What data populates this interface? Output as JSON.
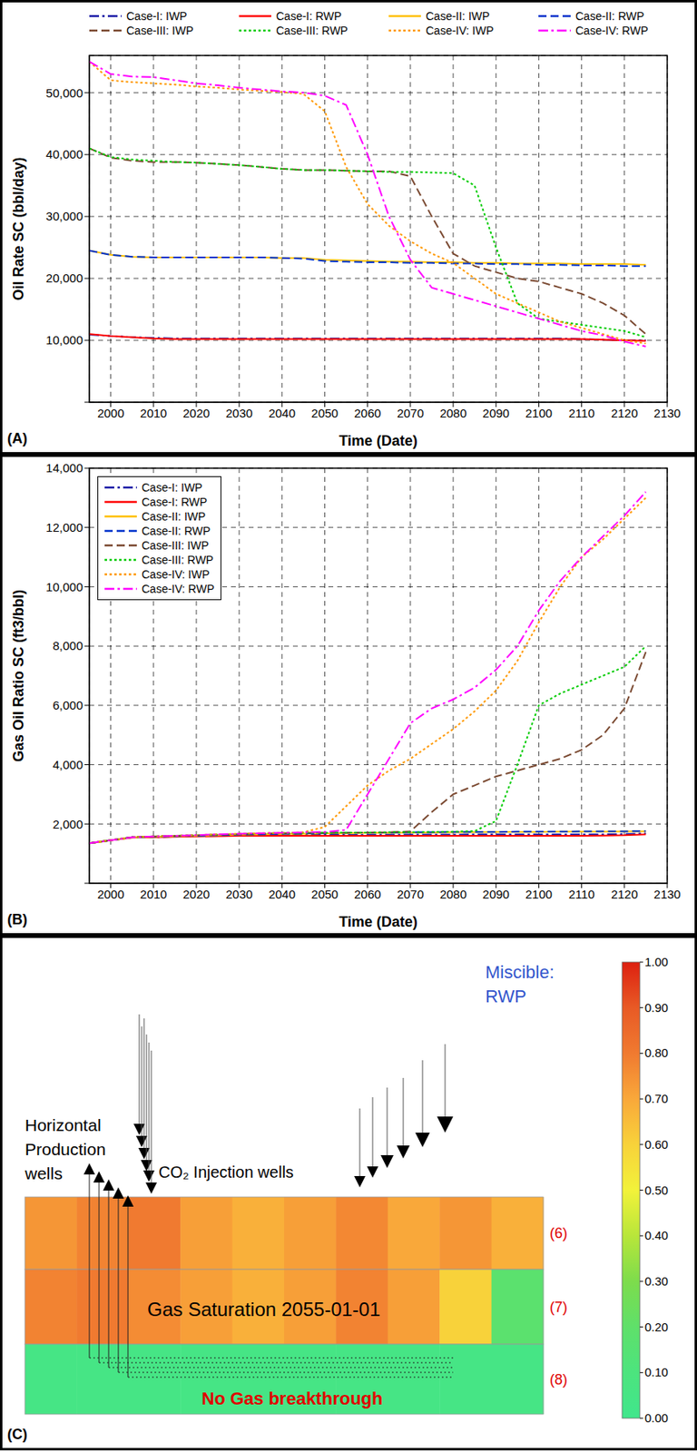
{
  "chart_data": [
    {
      "type": "line",
      "panel": "(A)",
      "y_label": "Oil Rate SC (bbl/day)",
      "x_label": "Time (Date)",
      "x": [
        1995,
        2000,
        2005,
        2010,
        2015,
        2020,
        2025,
        2030,
        2035,
        2040,
        2045,
        2050,
        2055,
        2060,
        2065,
        2070,
        2075,
        2080,
        2085,
        2090,
        2095,
        2100,
        2105,
        2110,
        2115,
        2120,
        2125
      ],
      "xlim": [
        1995,
        2130
      ],
      "xticks": [
        2000,
        2010,
        2020,
        2030,
        2040,
        2050,
        2060,
        2070,
        2080,
        2090,
        2100,
        2110,
        2120,
        2130
      ],
      "ylim": [
        0,
        56000
      ],
      "yticks": [
        0,
        {
          "value": 10000,
          "label": "10,000"
        },
        {
          "value": 20000,
          "label": "20,000"
        },
        {
          "value": 30000,
          "label": "30,000"
        },
        {
          "value": 40000,
          "label": "40,000"
        },
        {
          "value": 50000,
          "label": "50,000"
        }
      ],
      "grid": true,
      "legend": "top",
      "series": [
        {
          "name": "Case-I: IWP",
          "color": "#1a1aa6",
          "line_style": "dashdot",
          "values": [
            10900,
            10700,
            10500,
            10400,
            10300,
            10300,
            10300,
            10300,
            10300,
            10300,
            10300,
            10300,
            10300,
            10300,
            10300,
            10300,
            10300,
            10300,
            10300,
            10300,
            10300,
            10300,
            10300,
            10200,
            10100,
            10000,
            10000
          ]
        },
        {
          "name": "Case-I: RWP",
          "color": "#ff0000",
          "line_style": "solid",
          "values": [
            11000,
            10700,
            10500,
            10300,
            10200,
            10200,
            10200,
            10200,
            10200,
            10200,
            10200,
            10200,
            10200,
            10200,
            10200,
            10200,
            10200,
            10200,
            10200,
            10200,
            10200,
            10200,
            10200,
            10200,
            10100,
            10000,
            9900
          ]
        },
        {
          "name": "Case-II: IWP",
          "color": "#ffc000",
          "line_style": "solid",
          "values": [
            24500,
            23800,
            23500,
            23400,
            23400,
            23400,
            23400,
            23400,
            23400,
            23300,
            23300,
            23000,
            22900,
            22800,
            22700,
            22700,
            22600,
            22600,
            22500,
            22500,
            22400,
            22400,
            22400,
            22300,
            22300,
            22300,
            22200
          ]
        },
        {
          "name": "Case-II: RWP",
          "color": "#0033cc",
          "line_style": "dashed",
          "values": [
            24500,
            23800,
            23500,
            23400,
            23400,
            23400,
            23400,
            23400,
            23400,
            23300,
            23200,
            22800,
            22700,
            22600,
            22600,
            22500,
            22500,
            22400,
            22400,
            22300,
            22300,
            22200,
            22200,
            22100,
            22100,
            22000,
            22000
          ]
        },
        {
          "name": "Case-III: IWP",
          "color": "#7b4a32",
          "line_style": "dashed",
          "values": [
            41000,
            39500,
            39000,
            38800,
            38800,
            38700,
            38500,
            38300,
            38000,
            37700,
            37500,
            37500,
            37400,
            37300,
            37300,
            36500,
            30000,
            24000,
            22000,
            21000,
            20000,
            19500,
            18500,
            17500,
            16000,
            14000,
            11000
          ]
        },
        {
          "name": "Case-III: RWP",
          "color": "#00cc00",
          "line_style": "dotted",
          "values": [
            41000,
            39600,
            39200,
            39000,
            38800,
            38700,
            38500,
            38300,
            38000,
            37700,
            37500,
            37500,
            37400,
            37300,
            37200,
            37200,
            37100,
            37000,
            35000,
            25000,
            16000,
            13500,
            13000,
            12500,
            12000,
            11500,
            10500
          ]
        },
        {
          "name": "Case-IV: IWP",
          "color": "#ff9900",
          "line_style": "dotted",
          "values": [
            55000,
            52000,
            51700,
            51500,
            51300,
            51000,
            50800,
            50500,
            50300,
            50100,
            49800,
            47000,
            38000,
            32000,
            28500,
            26000,
            24000,
            22500,
            20000,
            17500,
            16000,
            14500,
            13000,
            12000,
            11000,
            10000,
            9500
          ]
        },
        {
          "name": "Case-IV: RWP",
          "color": "#ff00ff",
          "line_style": "dashdot",
          "values": [
            55000,
            53000,
            52600,
            52500,
            52000,
            51500,
            51200,
            50800,
            50500,
            50200,
            50000,
            49500,
            48000,
            40000,
            30000,
            23000,
            18500,
            17500,
            16500,
            15500,
            14500,
            13500,
            12500,
            11500,
            10800,
            9800,
            9000
          ]
        }
      ]
    },
    {
      "type": "line",
      "panel": "(B)",
      "y_label": "Gas Oil Ratio SC (ft3/bbl)",
      "x_label": "Time (Date)",
      "x": [
        1995,
        2000,
        2005,
        2010,
        2015,
        2020,
        2025,
        2030,
        2035,
        2040,
        2045,
        2050,
        2055,
        2060,
        2065,
        2070,
        2075,
        2080,
        2085,
        2090,
        2095,
        2100,
        2105,
        2110,
        2115,
        2120,
        2125
      ],
      "xlim": [
        1995,
        2130
      ],
      "xticks": [
        2000,
        2010,
        2020,
        2030,
        2040,
        2050,
        2060,
        2070,
        2080,
        2090,
        2100,
        2110,
        2120,
        2130
      ],
      "ylim": [
        0,
        14000
      ],
      "yticks": [
        0,
        {
          "value": 2000,
          "label": "2,000"
        },
        {
          "value": 4000,
          "label": "4,000"
        },
        {
          "value": 6000,
          "label": "6,000"
        },
        {
          "value": 8000,
          "label": "8,000"
        },
        {
          "value": 10000,
          "label": "10,000"
        },
        {
          "value": 12000,
          "label": "12,000"
        },
        {
          "value": 14000,
          "label": "14,000"
        }
      ],
      "grid": true,
      "legend": "top-left",
      "series": [
        {
          "name": "Case-I: IWP",
          "color": "#1a1aa6",
          "line_style": "dashdot",
          "values": [
            1350,
            1450,
            1550,
            1550,
            1580,
            1600,
            1600,
            1620,
            1620,
            1620,
            1630,
            1630,
            1630,
            1640,
            1640,
            1640,
            1640,
            1640,
            1650,
            1650,
            1650,
            1650,
            1650,
            1650,
            1650,
            1660,
            1680
          ]
        },
        {
          "name": "Case-I: RWP",
          "color": "#ff0000",
          "line_style": "solid",
          "values": [
            1350,
            1450,
            1540,
            1550,
            1570,
            1580,
            1590,
            1600,
            1600,
            1600,
            1600,
            1600,
            1600,
            1600,
            1600,
            1600,
            1600,
            1600,
            1600,
            1600,
            1600,
            1600,
            1600,
            1600,
            1610,
            1620,
            1650
          ]
        },
        {
          "name": "Case-II: IWP",
          "color": "#ffc000",
          "line_style": "solid",
          "values": [
            1350,
            1450,
            1550,
            1570,
            1590,
            1600,
            1620,
            1640,
            1650,
            1660,
            1670,
            1680,
            1690,
            1700,
            1700,
            1710,
            1710,
            1720,
            1720,
            1730,
            1730,
            1730,
            1740,
            1740,
            1740,
            1750,
            1750
          ]
        },
        {
          "name": "Case-II: RWP",
          "color": "#0033cc",
          "line_style": "dashed",
          "values": [
            1350,
            1450,
            1550,
            1570,
            1590,
            1600,
            1620,
            1640,
            1650,
            1660,
            1680,
            1690,
            1700,
            1710,
            1710,
            1720,
            1720,
            1730,
            1730,
            1730,
            1740,
            1740,
            1740,
            1750,
            1750,
            1750,
            1760
          ]
        },
        {
          "name": "Case-III: IWP",
          "color": "#7b4a32",
          "line_style": "dashed",
          "values": [
            1350,
            1450,
            1550,
            1580,
            1600,
            1620,
            1640,
            1660,
            1680,
            1690,
            1700,
            1700,
            1700,
            1710,
            1720,
            1750,
            2400,
            3000,
            3300,
            3600,
            3800,
            4000,
            4200,
            4500,
            5000,
            5900,
            7800
          ]
        },
        {
          "name": "Case-III: RWP",
          "color": "#00cc00",
          "line_style": "dotted",
          "values": [
            1350,
            1450,
            1550,
            1580,
            1600,
            1620,
            1640,
            1660,
            1680,
            1690,
            1700,
            1700,
            1710,
            1710,
            1720,
            1720,
            1730,
            1740,
            1760,
            2100,
            4000,
            6000,
            6400,
            6700,
            7000,
            7300,
            8000
          ]
        },
        {
          "name": "Case-IV: IWP",
          "color": "#ff9900",
          "line_style": "dotted",
          "values": [
            1350,
            1450,
            1550,
            1580,
            1600,
            1620,
            1650,
            1670,
            1690,
            1700,
            1720,
            1900,
            2600,
            3300,
            3800,
            4200,
            4700,
            5200,
            5800,
            6500,
            7500,
            8800,
            10000,
            11000,
            11600,
            12300,
            13000
          ]
        },
        {
          "name": "Case-IV: RWP",
          "color": "#ff00ff",
          "line_style": "dashdot",
          "values": [
            1350,
            1450,
            1550,
            1580,
            1600,
            1620,
            1650,
            1670,
            1690,
            1700,
            1720,
            1730,
            1800,
            3000,
            4200,
            5400,
            5900,
            6200,
            6600,
            7200,
            8000,
            9200,
            10200,
            11000,
            11700,
            12400,
            13200
          ]
        }
      ]
    },
    {
      "type": "diagram",
      "panel": "(C)",
      "labels": {
        "production_wells": "Horizontal Production wells",
        "injection_wells": "CO₂ Injection wells",
        "process": "Miscible: RWP",
        "property": "Gas Saturation 2055-01-01",
        "note": "No Gas breakthrough"
      },
      "layers": [
        {
          "label": "(6)",
          "saturation": [
            0.74,
            0.78,
            0.8,
            0.72,
            0.68,
            0.72,
            0.77,
            0.7,
            0.74,
            0.68
          ]
        },
        {
          "label": "(7)",
          "saturation": [
            0.78,
            0.8,
            0.76,
            0.72,
            0.68,
            0.72,
            0.78,
            0.72,
            0.6,
            0.18
          ]
        },
        {
          "label": "(8)",
          "saturation": [
            0.05,
            0.05,
            0.05,
            0.05,
            0.05,
            0.05,
            0.05,
            0.05,
            0.05,
            0.05
          ]
        }
      ],
      "colorbar": {
        "range": [
          0,
          1
        ],
        "ticks": [
          {
            "value": 0,
            "label": "0.00"
          },
          {
            "value": 0.1,
            "label": "0.10"
          },
          {
            "value": 0.2,
            "label": "0.20"
          },
          {
            "value": 0.3,
            "label": "0.30"
          },
          {
            "value": 0.4,
            "label": "0.40"
          },
          {
            "value": 0.5,
            "label": "0.50"
          },
          {
            "value": 0.6,
            "label": "0.60"
          },
          {
            "value": 0.7,
            "label": "0.70"
          },
          {
            "value": 0.8,
            "label": "0.80"
          },
          {
            "value": 0.9,
            "label": "0.90"
          },
          {
            "value": 1,
            "label": "1.00"
          }
        ],
        "colors": [
          "#40e68c",
          "#4ce47e",
          "#5fe06a",
          "#7ddc4c",
          "#b8e63a",
          "#f2f23a",
          "#f8d23a",
          "#f9a83a",
          "#f07a30",
          "#e85a25",
          "#dd2010"
        ]
      }
    }
  ]
}
